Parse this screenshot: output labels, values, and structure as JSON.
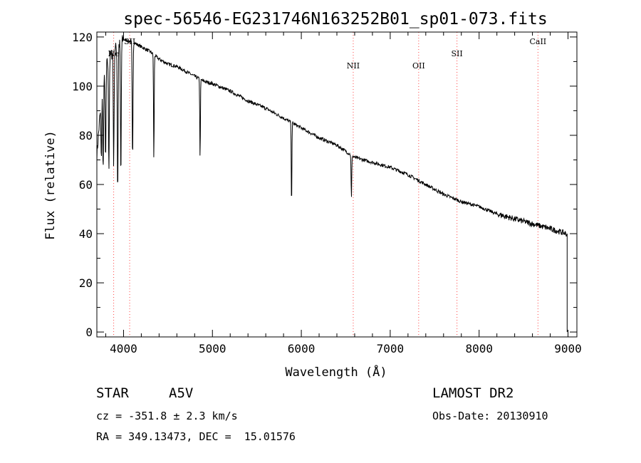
{
  "chart_data": {
    "type": "line",
    "title": "spec-56546-EG231746N163252B01_sp01-073.fits",
    "xlabel": "Wavelength (Å)",
    "ylabel": "Flux (relative)",
    "xlim": [
      3700,
      9100
    ],
    "ylim": [
      -2,
      122
    ],
    "xticks": [
      4000,
      5000,
      6000,
      7000,
      8000,
      9000
    ],
    "yticks": [
      0,
      20,
      40,
      60,
      80,
      100,
      120
    ],
    "grid": false,
    "line_color": "#000000",
    "marker_color": "#ff4444",
    "line_markers": [
      {
        "label": "He",
        "x": 3889
      },
      {
        "label": "SII",
        "x": 4069
      },
      {
        "label": "NII",
        "x": 6584
      },
      {
        "label": "OII",
        "x": 7320
      },
      {
        "label": "SII",
        "x": 7751
      },
      {
        "label": "CaII",
        "x": 8662
      }
    ],
    "continuum": {
      "x": [
        3700,
        3750,
        3800,
        3850,
        3900,
        4000,
        4100,
        4200,
        4300,
        4400,
        4500,
        4600,
        4700,
        4800,
        4900,
        5000,
        5200,
        5400,
        5600,
        5800,
        6000,
        6200,
        6400,
        6600,
        6800,
        7000,
        7200,
        7400,
        7600,
        7800,
        8000,
        8200,
        8400,
        8600,
        8800,
        8980
      ],
      "y": [
        72,
        95,
        108,
        112,
        115,
        119,
        118,
        116,
        114,
        111,
        109,
        108,
        106,
        104,
        102,
        101,
        98,
        94,
        91,
        87,
        83,
        79,
        76,
        71,
        69,
        67,
        64,
        60,
        56,
        53,
        51,
        48,
        46,
        44,
        42,
        40
      ]
    },
    "absorption_lines": [
      {
        "x": 3750,
        "y": 70
      },
      {
        "x": 3771,
        "y": 66
      },
      {
        "x": 3798,
        "y": 68
      },
      {
        "x": 3835,
        "y": 67
      },
      {
        "x": 3889,
        "y": 68
      },
      {
        "x": 3934,
        "y": 56
      },
      {
        "x": 3970,
        "y": 62
      },
      {
        "x": 4102,
        "y": 70
      },
      {
        "x": 4341,
        "y": 69
      },
      {
        "x": 4861,
        "y": 70
      },
      {
        "x": 5890,
        "y": 51
      },
      {
        "x": 6563,
        "y": 54
      }
    ],
    "end_drop": {
      "x": 8990,
      "y": 0
    }
  },
  "info": {
    "object_type": "STAR",
    "spectral_class": "A5V",
    "redshift": "cz = -351.8 ± 2.3 km/s",
    "coords": "RA = 349.13473, DEC =  15.01576",
    "survey": "LAMOST DR2",
    "obs_date": "Obs-Date: 20130910"
  }
}
